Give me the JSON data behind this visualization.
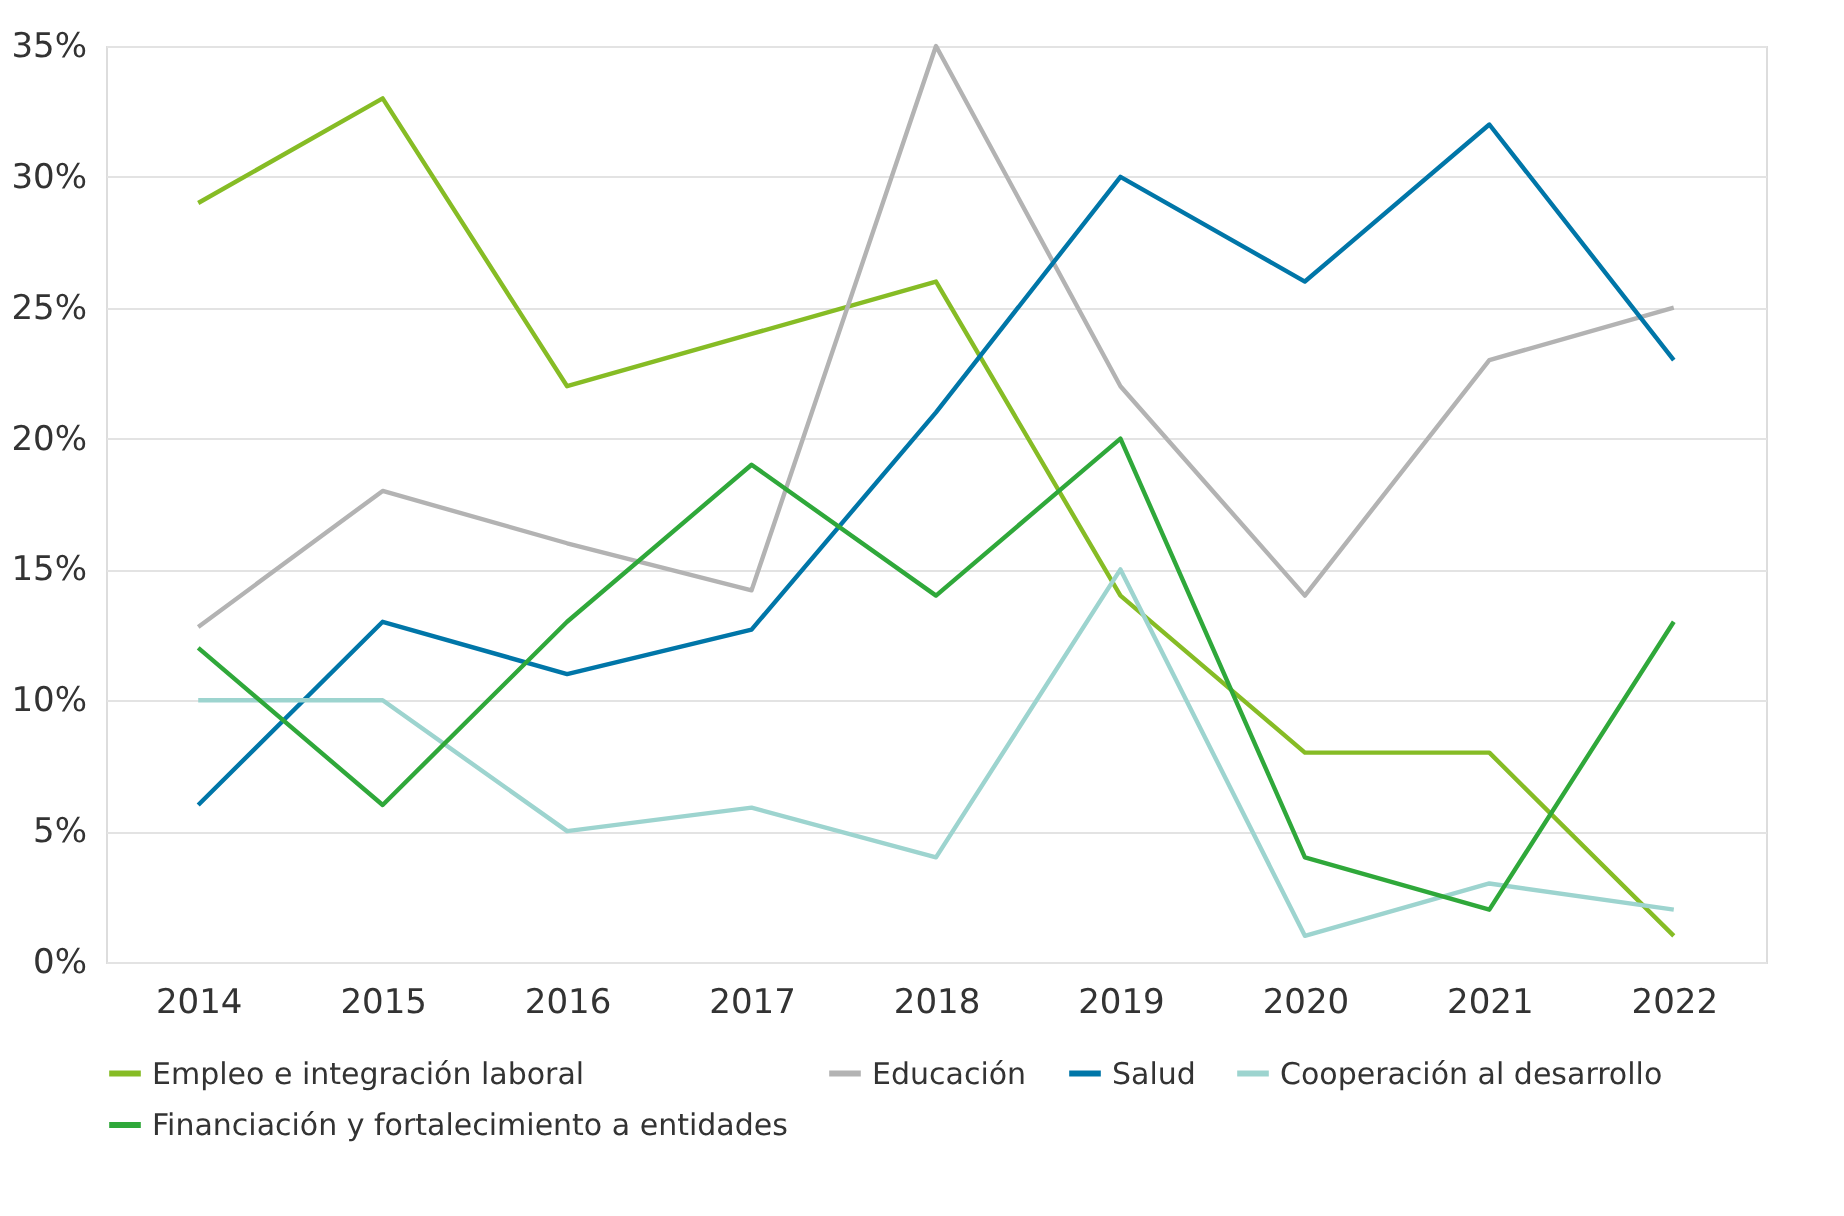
{
  "chart_data": {
    "type": "line",
    "categories": [
      "2014",
      "2015",
      "2016",
      "2017",
      "2018",
      "2019",
      "2020",
      "2021",
      "2022"
    ],
    "ylim": [
      0,
      35
    ],
    "yticks": [
      {
        "value": 0,
        "label": "0%"
      },
      {
        "value": 5,
        "label": "5%"
      },
      {
        "value": 10,
        "label": "10%"
      },
      {
        "value": 15,
        "label": "15%"
      },
      {
        "value": 20,
        "label": "20%"
      },
      {
        "value": 25,
        "label": "25%"
      },
      {
        "value": 30,
        "label": "30%"
      },
      {
        "value": 35,
        "label": "35%"
      }
    ],
    "grid": "y",
    "legend": "bottom",
    "marker": "none",
    "line_style": "solid",
    "series": [
      {
        "name": "Empleo e integración laboral",
        "color": "#86bc25",
        "values": [
          29,
          33,
          22,
          24,
          26,
          14,
          8,
          8,
          1
        ]
      },
      {
        "name": "Educación",
        "color": "#b3b3b3",
        "values": [
          12.8,
          18,
          16,
          14.2,
          35,
          22,
          14,
          23,
          25
        ]
      },
      {
        "name": "Salud",
        "color": "#0076a8",
        "values": [
          6,
          13,
          11,
          12.7,
          21,
          30,
          26,
          32,
          23
        ]
      },
      {
        "name": "Cooperación al desarrollo",
        "color": "#9dd4cf",
        "values": [
          10,
          10,
          5,
          5.9,
          4,
          15,
          1,
          3,
          2
        ]
      },
      {
        "name": "Financiación y fortalecimiento a entidades",
        "color": "#2fa83a",
        "values": [
          12,
          6,
          13,
          19,
          14,
          20,
          4,
          2,
          13
        ]
      }
    ]
  }
}
